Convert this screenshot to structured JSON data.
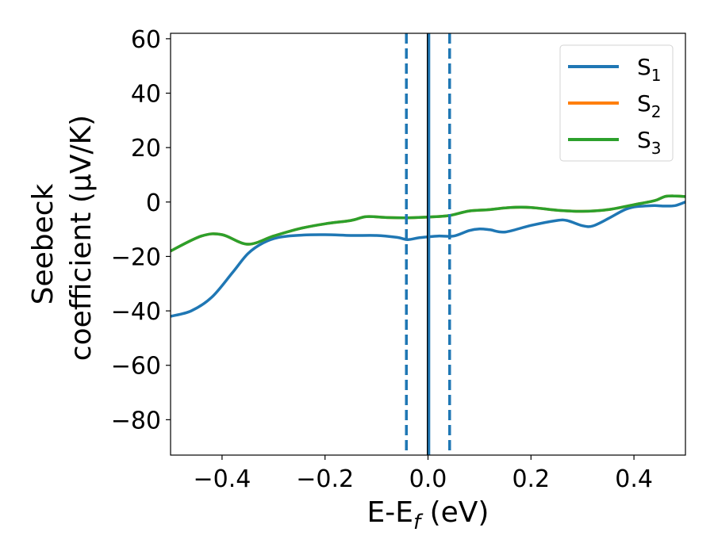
{
  "chart_data": {
    "type": "line",
    "xlabel": {
      "base": "E-E",
      "sub": "f",
      "unit": " (eV)"
    },
    "ylabel": {
      "line1": "Seebeck",
      "line2": "coefficient  (μV/K)"
    },
    "xlim": [
      -0.5,
      0.5
    ],
    "ylim": [
      -93,
      62
    ],
    "xticks": [
      -0.4,
      -0.2,
      0.0,
      0.2,
      0.4
    ],
    "xtick_labels": [
      "−0.4",
      "−0.2",
      "0.0",
      "0.2",
      "0.4"
    ],
    "yticks": [
      -80,
      -60,
      -40,
      -20,
      0,
      20,
      40,
      60
    ],
    "ytick_labels": [
      "−80",
      "−60",
      "−40",
      "−20",
      "0",
      "20",
      "40",
      "60"
    ],
    "grid": false,
    "legend_position": "top-right",
    "vlines": [
      {
        "x": -0.042,
        "style": "dashed",
        "color": "#1f77b4"
      },
      {
        "x": 0.042,
        "style": "dashed",
        "color": "#1f77b4"
      },
      {
        "x": 0.0,
        "style": "solid",
        "color": "#000000"
      },
      {
        "x": 0.002,
        "style": "solid",
        "color": "#1f77b4"
      }
    ],
    "series": [
      {
        "name": "S",
        "sub": "1",
        "color": "#1f77b4",
        "x": [
          -0.5,
          -0.46,
          -0.42,
          -0.38,
          -0.35,
          -0.32,
          -0.29,
          -0.25,
          -0.2,
          -0.15,
          -0.1,
          -0.06,
          -0.04,
          -0.02,
          0.0,
          0.02,
          0.05,
          0.08,
          0.1,
          0.12,
          0.15,
          0.2,
          0.25,
          0.27,
          0.3,
          0.32,
          0.35,
          0.38,
          0.4,
          0.42,
          0.44,
          0.46,
          0.48,
          0.5
        ],
        "values": [
          -42,
          -40,
          -35,
          -26,
          -19,
          -15,
          -13,
          -12.2,
          -12,
          -12.3,
          -12.3,
          -13,
          -13.8,
          -13.2,
          -12.8,
          -12.5,
          -12.5,
          -10.5,
          -9.9,
          -10.2,
          -11,
          -8.6,
          -6.8,
          -6.8,
          -8.7,
          -8.8,
          -6.1,
          -3,
          -1.8,
          -1.5,
          -1.3,
          -1.5,
          -1.3,
          0
        ]
      },
      {
        "name": "S",
        "sub": "2",
        "color": "#ff7f0e",
        "x": [
          -0.5,
          -0.44,
          -0.4,
          -0.35,
          -0.3,
          -0.25,
          -0.2,
          -0.15,
          -0.12,
          -0.08,
          -0.04,
          0.0,
          0.04,
          0.08,
          0.12,
          0.16,
          0.2,
          0.25,
          0.3,
          0.35,
          0.4,
          0.44,
          0.46,
          0.48,
          0.5
        ],
        "values": [
          -18,
          -12.5,
          -12,
          -15.5,
          -12.5,
          -9.8,
          -8,
          -6.8,
          -5.4,
          -5.7,
          -5.8,
          -5.5,
          -5,
          -3.3,
          -2.8,
          -2,
          -2,
          -3,
          -3.4,
          -2.8,
          -1,
          0.5,
          2,
          2.2,
          2
        ]
      },
      {
        "name": "S",
        "sub": "3",
        "color": "#2ca02c",
        "x": [
          -0.5,
          -0.44,
          -0.4,
          -0.35,
          -0.3,
          -0.25,
          -0.2,
          -0.15,
          -0.12,
          -0.08,
          -0.04,
          0.0,
          0.04,
          0.08,
          0.12,
          0.16,
          0.2,
          0.25,
          0.3,
          0.35,
          0.4,
          0.44,
          0.46,
          0.48,
          0.5
        ],
        "values": [
          -18,
          -12.5,
          -12,
          -15.5,
          -12.5,
          -9.8,
          -8,
          -6.8,
          -5.4,
          -5.7,
          -5.8,
          -5.5,
          -5,
          -3.3,
          -2.8,
          -2,
          -2,
          -3,
          -3.4,
          -2.8,
          -1,
          0.5,
          2,
          2.2,
          2
        ]
      }
    ]
  }
}
